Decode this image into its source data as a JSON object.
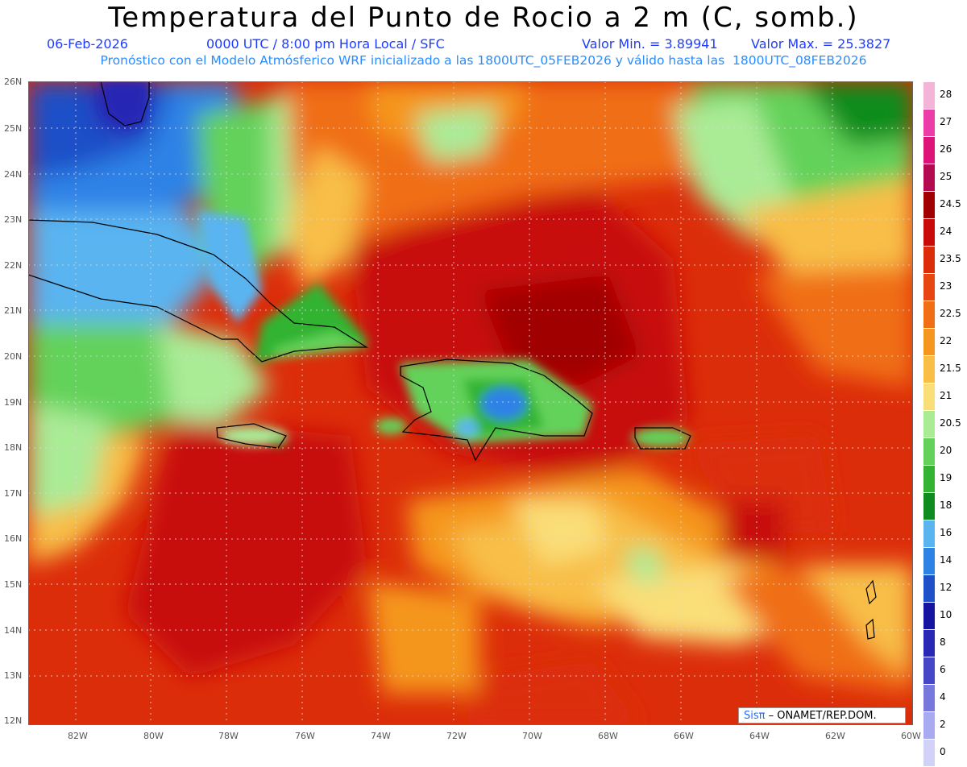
{
  "title": "Temperatura del Punto de Rocio a 2 m (C, somb.)",
  "line1": {
    "date": "06-Feb-2026",
    "time": "0000 UTC / 8:00 pm Hora Local / SFC",
    "min": "Valor Min. = 3.89941",
    "max": "Valor Max. = 25.3827"
  },
  "line2": "Pronóstico con el Modelo Atmósferico WRF inicializado a las 1800UTC_05FEB2026 y válido hasta las  1800UTC_08FEB2026",
  "lat_labels": [
    "26N",
    "25N",
    "24N",
    "23N",
    "22N",
    "21N",
    "20N",
    "19N",
    "18N",
    "17N",
    "16N",
    "15N",
    "14N",
    "13N",
    "12N"
  ],
  "lon_labels": [
    "82W",
    "80W",
    "78W",
    "76W",
    "74W",
    "72W",
    "70W",
    "68W",
    "66W",
    "64W",
    "62W",
    "60W"
  ],
  "colorbar": {
    "labels": [
      "28",
      "27",
      "26",
      "25",
      "24.5",
      "24",
      "23.5",
      "23",
      "22.5",
      "22",
      "21.5",
      "21",
      "20.5",
      "20",
      "19",
      "18",
      "16",
      "14",
      "12",
      "10",
      "8",
      "6",
      "4",
      "2",
      "0"
    ],
    "colors": [
      "#f4b4d8",
      "#ec3ca8",
      "#dc1478",
      "#b40a50",
      "#a00000",
      "#c80a0a",
      "#dc2d0a",
      "#e84610",
      "#f06e14",
      "#f5961e",
      "#f8be46",
      "#fade78",
      "#aaeb96",
      "#64d25a",
      "#32b432",
      "#0f8c1e",
      "#5ab4f0",
      "#2d82e6",
      "#1e50c8",
      "#1414a0",
      "#2828b4",
      "#4646c8",
      "#7878dc",
      "#aaaaf0",
      "#d2d2f8"
    ]
  },
  "credit": {
    "sis": "Sisπ",
    "rest": "– ONAMET/REP.DOM."
  }
}
